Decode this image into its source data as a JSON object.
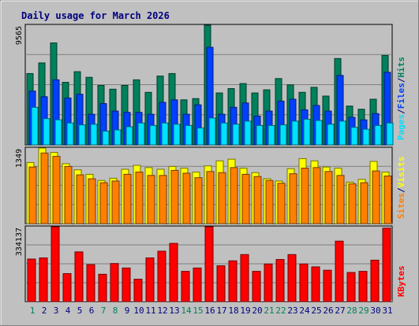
{
  "chart_data": [
    {
      "type": "bar",
      "panel": "hits-files-pages",
      "title": "Daily usage for March 2026",
      "y_max_label": "9565",
      "ylim": [
        0,
        9565
      ],
      "grid": true,
      "legend_placement": "right-vertical",
      "legend": [
        {
          "label": "Pages",
          "color": "#00e0ff"
        },
        {
          "label": "/",
          "color": "#000080"
        },
        {
          "label": "Files",
          "color": "#0040ff"
        },
        {
          "label": "/",
          "color": "#000080"
        },
        {
          "label": "Hits",
          "color": "#00805c"
        }
      ],
      "categories": [
        "1",
        "2",
        "3",
        "4",
        "5",
        "6",
        "7",
        "8",
        "9",
        "10",
        "11",
        "12",
        "13",
        "14",
        "15",
        "16",
        "17",
        "18",
        "19",
        "20",
        "21",
        "22",
        "23",
        "24",
        "25",
        "26",
        "27",
        "28",
        "29",
        "30",
        "31"
      ],
      "series": [
        {
          "name": "Hits",
          "color": "#00805c",
          "values": [
            5700,
            6550,
            8150,
            5000,
            5850,
            5400,
            4750,
            4450,
            4750,
            5200,
            4200,
            5500,
            5700,
            3600,
            3700,
            9565,
            4150,
            4500,
            4900,
            4150,
            4400,
            5300,
            4800,
            4200,
            4600,
            3900,
            6900,
            3100,
            2850,
            3650,
            7150
          ]
        },
        {
          "name": "Files",
          "color": "#0040ff",
          "values": [
            4300,
            3850,
            5200,
            3750,
            4050,
            2450,
            3300,
            2700,
            2600,
            2600,
            2450,
            3400,
            3600,
            2450,
            3200,
            7800,
            2450,
            3000,
            3350,
            2300,
            2700,
            3500,
            3650,
            2800,
            3150,
            2700,
            5550,
            2200,
            2000,
            2500,
            5800
          ]
        },
        {
          "name": "Pages",
          "color": "#00e0ff",
          "values": [
            3000,
            2100,
            2000,
            1750,
            1600,
            1650,
            1100,
            1200,
            1450,
            1750,
            1550,
            1750,
            1650,
            1550,
            1350,
            2150,
            1750,
            1650,
            1900,
            1550,
            1550,
            1600,
            1900,
            2050,
            1950,
            1650,
            1900,
            1400,
            1250,
            1550,
            1750
          ]
        }
      ]
    },
    {
      "type": "bar",
      "panel": "visits-sites",
      "y_max_label": "1349",
      "ylim": [
        0,
        1349
      ],
      "grid": true,
      "legend_placement": "right-vertical",
      "legend": [
        {
          "label": "Sites",
          "color": "#ff8000"
        },
        {
          "label": "/",
          "color": "#000080"
        },
        {
          "label": "Visits",
          "color": "#ffff00"
        }
      ],
      "categories": [
        "1",
        "2",
        "3",
        "4",
        "5",
        "6",
        "7",
        "8",
        "9",
        "10",
        "11",
        "12",
        "13",
        "14",
        "15",
        "16",
        "17",
        "18",
        "19",
        "20",
        "21",
        "22",
        "23",
        "24",
        "25",
        "26",
        "27",
        "28",
        "29",
        "30",
        "31"
      ],
      "series": [
        {
          "name": "Visits",
          "color": "#ffff00",
          "values": [
            1090,
            1349,
            1270,
            1070,
            960,
            880,
            770,
            810,
            970,
            1040,
            1000,
            970,
            1020,
            990,
            920,
            1030,
            1120,
            1150,
            990,
            910,
            800,
            760,
            980,
            1160,
            1120,
            1010,
            990,
            740,
            790,
            1110,
            920
          ]
        },
        {
          "name": "Sites",
          "color": "#ff8000",
          "values": [
            1010,
            1260,
            1200,
            1020,
            870,
            800,
            730,
            760,
            880,
            920,
            860,
            860,
            950,
            900,
            820,
            930,
            910,
            1000,
            880,
            840,
            770,
            720,
            890,
            990,
            1000,
            930,
            860,
            710,
            730,
            940,
            850
          ]
        }
      ]
    },
    {
      "type": "bar",
      "panel": "kbytes",
      "y_max_label": "334137",
      "ylim": [
        0,
        334137
      ],
      "grid": true,
      "legend_placement": "right-vertical",
      "legend": [
        {
          "label": "KBytes",
          "color": "#ff0000"
        }
      ],
      "categories": [
        "1",
        "2",
        "3",
        "4",
        "5",
        "6",
        "7",
        "8",
        "9",
        "10",
        "11",
        "12",
        "13",
        "14",
        "15",
        "16",
        "17",
        "18",
        "19",
        "20",
        "21",
        "22",
        "23",
        "24",
        "25",
        "26",
        "27",
        "28",
        "29",
        "30",
        "31"
      ],
      "series": [
        {
          "name": "KBytes",
          "color": "#ff0000",
          "values": [
            190000,
            195000,
            334137,
            125000,
            222000,
            165000,
            122000,
            170000,
            150000,
            100000,
            195000,
            225000,
            260000,
            135000,
            150000,
            334137,
            160000,
            182000,
            210000,
            135000,
            168000,
            188000,
            210000,
            168000,
            155000,
            140000,
            270000,
            130000,
            135000,
            185000,
            328000
          ]
        }
      ]
    }
  ],
  "x_tick_colors": {
    "weekday": "#000080",
    "weekend": "#00805c",
    "weekend_days": [
      "1",
      "7",
      "8",
      "14",
      "15",
      "21",
      "22",
      "28",
      "29"
    ]
  }
}
